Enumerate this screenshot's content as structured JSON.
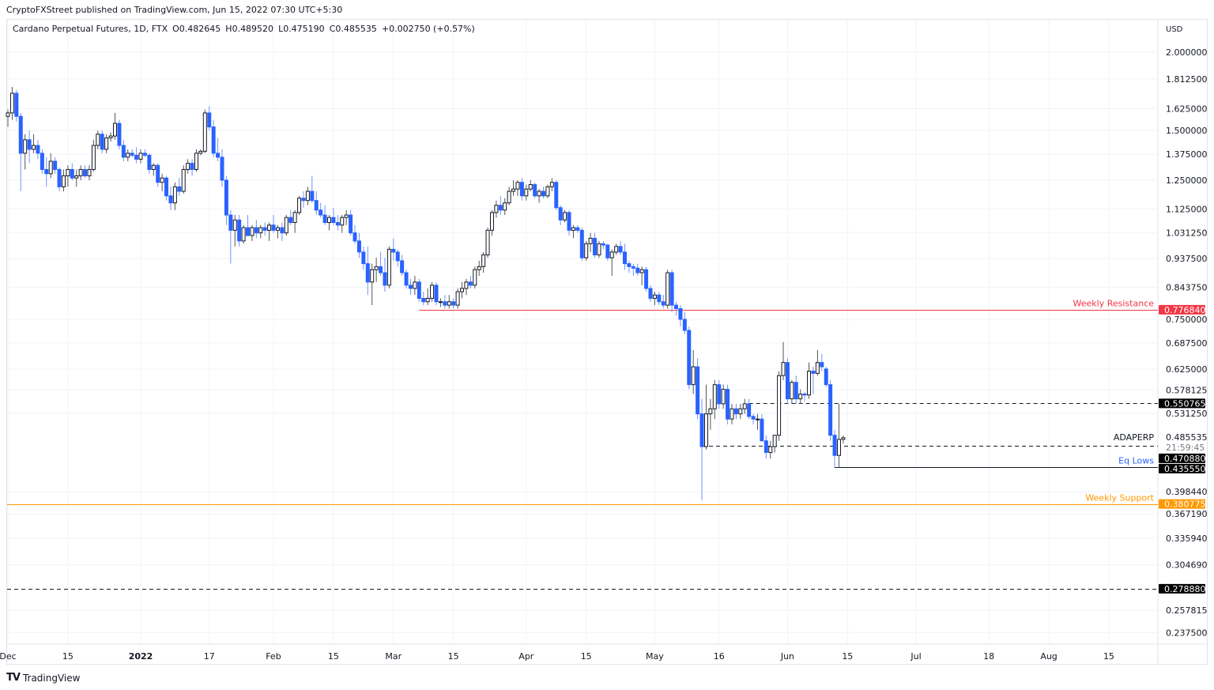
{
  "publisher_line": "CryptoFXStreet published on TradingView.com, Jun 15, 2022 07:30 UTC+5:30",
  "legend": {
    "symbol": "Cardano Perpetual Futures, 1D, FTX",
    "open": "O0.482645",
    "high": "H0.489520",
    "low": "L0.475190",
    "close": "C0.485535",
    "change": "+0.002750 (+0.57%)"
  },
  "footer": {
    "brand": "TradingView",
    "logo_text": "TV"
  },
  "colors": {
    "up_border": "#131722",
    "up_fill": "#ffffff",
    "down": "#2962ff",
    "down_wick": "#6f93ff",
    "resistance": "#f23645",
    "support": "#ff9800",
    "grid": "#f0f3fa",
    "label_bg": "#000000"
  },
  "chart_data": {
    "type": "candlestick",
    "title": "Cardano Perpetual Futures, 1D, FTX",
    "currency": "USD",
    "scale": "log",
    "ylim": [
      0.225,
      2.1
    ],
    "grid": true,
    "candles_ohlc_from": "Dec 2021",
    "candles": [
      [
        1.58,
        1.62,
        1.52,
        1.6
      ],
      [
        1.6,
        1.76,
        1.56,
        1.72
      ],
      [
        1.72,
        1.74,
        1.55,
        1.58
      ],
      [
        1.58,
        1.6,
        1.2,
        1.38
      ],
      [
        1.38,
        1.48,
        1.3,
        1.45
      ],
      [
        1.45,
        1.5,
        1.33,
        1.4
      ],
      [
        1.4,
        1.48,
        1.38,
        1.42
      ],
      [
        1.42,
        1.45,
        1.35,
        1.38
      ],
      [
        1.38,
        1.4,
        1.28,
        1.3
      ],
      [
        1.3,
        1.36,
        1.22,
        1.28
      ],
      [
        1.28,
        1.38,
        1.26,
        1.34
      ],
      [
        1.34,
        1.36,
        1.28,
        1.3
      ],
      [
        1.3,
        1.31,
        1.2,
        1.22
      ],
      [
        1.22,
        1.3,
        1.2,
        1.27
      ],
      [
        1.27,
        1.32,
        1.22,
        1.3
      ],
      [
        1.3,
        1.33,
        1.25,
        1.26
      ],
      [
        1.26,
        1.3,
        1.22,
        1.27
      ],
      [
        1.27,
        1.32,
        1.25,
        1.3
      ],
      [
        1.3,
        1.32,
        1.26,
        1.27
      ],
      [
        1.27,
        1.32,
        1.25,
        1.3
      ],
      [
        1.3,
        1.45,
        1.29,
        1.42
      ],
      [
        1.42,
        1.5,
        1.4,
        1.48
      ],
      [
        1.48,
        1.5,
        1.38,
        1.4
      ],
      [
        1.4,
        1.48,
        1.38,
        1.46
      ],
      [
        1.46,
        1.49,
        1.44,
        1.47
      ],
      [
        1.47,
        1.6,
        1.45,
        1.54
      ],
      [
        1.54,
        1.56,
        1.4,
        1.42
      ],
      [
        1.42,
        1.45,
        1.34,
        1.36
      ],
      [
        1.36,
        1.4,
        1.34,
        1.38
      ],
      [
        1.38,
        1.4,
        1.36,
        1.37
      ],
      [
        1.37,
        1.41,
        1.33,
        1.35
      ],
      [
        1.35,
        1.4,
        1.33,
        1.38
      ],
      [
        1.38,
        1.4,
        1.36,
        1.37
      ],
      [
        1.37,
        1.38,
        1.28,
        1.3
      ],
      [
        1.3,
        1.33,
        1.27,
        1.32
      ],
      [
        1.32,
        1.33,
        1.22,
        1.24
      ],
      [
        1.24,
        1.28,
        1.2,
        1.26
      ],
      [
        1.26,
        1.27,
        1.16,
        1.18
      ],
      [
        1.18,
        1.22,
        1.12,
        1.15
      ],
      [
        1.15,
        1.24,
        1.12,
        1.22
      ],
      [
        1.22,
        1.26,
        1.18,
        1.2
      ],
      [
        1.2,
        1.32,
        1.19,
        1.3
      ],
      [
        1.3,
        1.35,
        1.28,
        1.33
      ],
      [
        1.33,
        1.35,
        1.27,
        1.3
      ],
      [
        1.3,
        1.4,
        1.29,
        1.38
      ],
      [
        1.38,
        1.4,
        1.37,
        1.39
      ],
      [
        1.39,
        1.62,
        1.38,
        1.6
      ],
      [
        1.6,
        1.64,
        1.5,
        1.52
      ],
      [
        1.52,
        1.56,
        1.36,
        1.38
      ],
      [
        1.38,
        1.46,
        1.34,
        1.36
      ],
      [
        1.36,
        1.4,
        1.22,
        1.25
      ],
      [
        1.25,
        1.27,
        1.06,
        1.1
      ],
      [
        1.1,
        1.12,
        0.92,
        1.04
      ],
      [
        1.04,
        1.1,
        0.98,
        1.08
      ],
      [
        1.08,
        1.1,
        0.98,
        1.0
      ],
      [
        1.0,
        1.06,
        0.99,
        1.05
      ],
      [
        1.05,
        1.1,
        1.02,
        1.02
      ],
      [
        1.02,
        1.06,
        1.0,
        1.05
      ],
      [
        1.05,
        1.08,
        1.01,
        1.03
      ],
      [
        1.03,
        1.06,
        1.01,
        1.05
      ],
      [
        1.05,
        1.07,
        1.02,
        1.04
      ],
      [
        1.04,
        1.07,
        1.0,
        1.06
      ],
      [
        1.06,
        1.1,
        1.03,
        1.04
      ],
      [
        1.04,
        1.06,
        1.01,
        1.05
      ],
      [
        1.05,
        1.07,
        1.0,
        1.03
      ],
      [
        1.03,
        1.1,
        1.02,
        1.09
      ],
      [
        1.09,
        1.12,
        1.06,
        1.07
      ],
      [
        1.07,
        1.12,
        1.03,
        1.11
      ],
      [
        1.11,
        1.18,
        1.1,
        1.17
      ],
      [
        1.17,
        1.2,
        1.13,
        1.16
      ],
      [
        1.16,
        1.22,
        1.14,
        1.2
      ],
      [
        1.2,
        1.27,
        1.15,
        1.16
      ],
      [
        1.16,
        1.2,
        1.1,
        1.12
      ],
      [
        1.12,
        1.15,
        1.09,
        1.1
      ],
      [
        1.1,
        1.14,
        1.06,
        1.07
      ],
      [
        1.07,
        1.1,
        1.04,
        1.09
      ],
      [
        1.09,
        1.13,
        1.06,
        1.07
      ],
      [
        1.07,
        1.1,
        1.04,
        1.06
      ],
      [
        1.06,
        1.1,
        1.03,
        1.09
      ],
      [
        1.09,
        1.12,
        1.06,
        1.1
      ],
      [
        1.1,
        1.12,
        1.02,
        1.03
      ],
      [
        1.03,
        1.06,
        0.99,
        1.0
      ],
      [
        1.0,
        1.03,
        0.94,
        0.96
      ],
      [
        0.96,
        0.98,
        0.9,
        0.92
      ],
      [
        0.92,
        0.98,
        0.82,
        0.86
      ],
      [
        0.86,
        0.92,
        0.79,
        0.9
      ],
      [
        0.9,
        0.94,
        0.86,
        0.91
      ],
      [
        0.91,
        0.96,
        0.88,
        0.89
      ],
      [
        0.89,
        0.94,
        0.83,
        0.85
      ],
      [
        0.85,
        0.98,
        0.84,
        0.97
      ],
      [
        0.97,
        1.01,
        0.93,
        0.96
      ],
      [
        0.96,
        0.97,
        0.91,
        0.93
      ],
      [
        0.93,
        0.95,
        0.88,
        0.89
      ],
      [
        0.89,
        0.9,
        0.84,
        0.85
      ],
      [
        0.85,
        0.87,
        0.82,
        0.84
      ],
      [
        0.84,
        0.88,
        0.82,
        0.86
      ],
      [
        0.86,
        0.87,
        0.8,
        0.81
      ],
      [
        0.81,
        0.83,
        0.79,
        0.8
      ],
      [
        0.8,
        0.84,
        0.79,
        0.81
      ],
      [
        0.81,
        0.86,
        0.8,
        0.85
      ],
      [
        0.85,
        0.86,
        0.79,
        0.8
      ],
      [
        0.8,
        0.81,
        0.785,
        0.8
      ],
      [
        0.8,
        0.82,
        0.78,
        0.79
      ],
      [
        0.79,
        0.82,
        0.78,
        0.8
      ],
      [
        0.8,
        0.81,
        0.78,
        0.79
      ],
      [
        0.79,
        0.84,
        0.78,
        0.83
      ],
      [
        0.83,
        0.86,
        0.81,
        0.84
      ],
      [
        0.84,
        0.87,
        0.82,
        0.86
      ],
      [
        0.86,
        0.88,
        0.84,
        0.85
      ],
      [
        0.85,
        0.91,
        0.84,
        0.9
      ],
      [
        0.9,
        0.93,
        0.88,
        0.91
      ],
      [
        0.91,
        0.96,
        0.89,
        0.95
      ],
      [
        0.95,
        1.05,
        0.94,
        1.04
      ],
      [
        1.04,
        1.12,
        1.02,
        1.11
      ],
      [
        1.11,
        1.16,
        1.09,
        1.14
      ],
      [
        1.14,
        1.18,
        1.1,
        1.12
      ],
      [
        1.12,
        1.17,
        1.1,
        1.15
      ],
      [
        1.15,
        1.22,
        1.14,
        1.2
      ],
      [
        1.2,
        1.25,
        1.18,
        1.21
      ],
      [
        1.21,
        1.25,
        1.18,
        1.24
      ],
      [
        1.24,
        1.26,
        1.16,
        1.18
      ],
      [
        1.18,
        1.23,
        1.16,
        1.21
      ],
      [
        1.21,
        1.25,
        1.2,
        1.23
      ],
      [
        1.23,
        1.24,
        1.17,
        1.18
      ],
      [
        1.18,
        1.21,
        1.15,
        1.2
      ],
      [
        1.2,
        1.22,
        1.17,
        1.18
      ],
      [
        1.18,
        1.23,
        1.17,
        1.22
      ],
      [
        1.22,
        1.26,
        1.2,
        1.24
      ],
      [
        1.24,
        1.25,
        1.12,
        1.13
      ],
      [
        1.13,
        1.14,
        1.06,
        1.08
      ],
      [
        1.08,
        1.12,
        1.07,
        1.11
      ],
      [
        1.11,
        1.12,
        1.02,
        1.04
      ],
      [
        1.04,
        1.06,
        1.01,
        1.05
      ],
      [
        1.05,
        1.06,
        1.03,
        1.04
      ],
      [
        1.04,
        1.05,
        0.93,
        0.94
      ],
      [
        0.94,
        1.0,
        0.93,
        0.99
      ],
      [
        0.99,
        1.03,
        0.96,
        1.01
      ],
      [
        1.01,
        1.03,
        0.94,
        0.95
      ],
      [
        0.95,
        1.0,
        0.94,
        0.99
      ],
      [
        0.99,
        1.0,
        0.97,
        0.985
      ],
      [
        0.985,
        0.99,
        0.93,
        0.94
      ],
      [
        0.94,
        0.97,
        0.88,
        0.96
      ],
      [
        0.96,
        0.99,
        0.95,
        0.98
      ],
      [
        0.98,
        1.0,
        0.95,
        0.96
      ],
      [
        0.96,
        0.99,
        0.9,
        0.92
      ],
      [
        0.92,
        0.93,
        0.89,
        0.91
      ],
      [
        0.91,
        0.92,
        0.88,
        0.905
      ],
      [
        0.905,
        0.92,
        0.88,
        0.89
      ],
      [
        0.89,
        0.91,
        0.85,
        0.9
      ],
      [
        0.9,
        0.91,
        0.83,
        0.84
      ],
      [
        0.84,
        0.85,
        0.8,
        0.81
      ],
      [
        0.81,
        0.83,
        0.79,
        0.82
      ],
      [
        0.82,
        0.83,
        0.79,
        0.8
      ],
      [
        0.8,
        0.82,
        0.78,
        0.79
      ],
      [
        0.79,
        0.9,
        0.78,
        0.89
      ],
      [
        0.89,
        0.9,
        0.77,
        0.79
      ],
      [
        0.79,
        0.8,
        0.76,
        0.78
      ],
      [
        0.78,
        0.79,
        0.73,
        0.75
      ],
      [
        0.75,
        0.77,
        0.71,
        0.72
      ],
      [
        0.72,
        0.73,
        0.58,
        0.59
      ],
      [
        0.59,
        0.67,
        0.57,
        0.63
      ],
      [
        0.63,
        0.65,
        0.52,
        0.53
      ],
      [
        0.53,
        0.56,
        0.386,
        0.47
      ],
      [
        0.47,
        0.59,
        0.465,
        0.53
      ],
      [
        0.53,
        0.56,
        0.5,
        0.54
      ],
      [
        0.54,
        0.6,
        0.52,
        0.59
      ],
      [
        0.59,
        0.6,
        0.54,
        0.55
      ],
      [
        0.55,
        0.59,
        0.54,
        0.58
      ],
      [
        0.58,
        0.59,
        0.51,
        0.52
      ],
      [
        0.52,
        0.55,
        0.51,
        0.54
      ],
      [
        0.54,
        0.55,
        0.52,
        0.53
      ],
      [
        0.53,
        0.55,
        0.52,
        0.54
      ],
      [
        0.54,
        0.56,
        0.53,
        0.55
      ],
      [
        0.55,
        0.56,
        0.52,
        0.525
      ],
      [
        0.525,
        0.53,
        0.51,
        0.52
      ],
      [
        0.52,
        0.53,
        0.5,
        0.52
      ],
      [
        0.52,
        0.53,
        0.48,
        0.48
      ],
      [
        0.48,
        0.49,
        0.45,
        0.46
      ],
      [
        0.46,
        0.48,
        0.45,
        0.47
      ],
      [
        0.47,
        0.49,
        0.46,
        0.49
      ],
      [
        0.49,
        0.62,
        0.48,
        0.61
      ],
      [
        0.61,
        0.69,
        0.6,
        0.64
      ],
      [
        0.64,
        0.65,
        0.55,
        0.56
      ],
      [
        0.56,
        0.6,
        0.55,
        0.595
      ],
      [
        0.595,
        0.61,
        0.55,
        0.56
      ],
      [
        0.56,
        0.58,
        0.55,
        0.57
      ],
      [
        0.57,
        0.575,
        0.555,
        0.568
      ],
      [
        0.568,
        0.64,
        0.56,
        0.62
      ],
      [
        0.62,
        0.63,
        0.57,
        0.615
      ],
      [
        0.615,
        0.67,
        0.61,
        0.64
      ],
      [
        0.64,
        0.66,
        0.62,
        0.63
      ],
      [
        0.625,
        0.63,
        0.585,
        0.59
      ],
      [
        0.59,
        0.6,
        0.48,
        0.49
      ],
      [
        0.49,
        0.5,
        0.4355,
        0.455
      ],
      [
        0.455,
        0.55,
        0.4355,
        0.4826
      ],
      [
        0.482645,
        0.48952,
        0.47519,
        0.485535
      ]
    ],
    "price_ticks": [
      "2.000000",
      "1.812500",
      "1.625000",
      "1.500000",
      "1.375000",
      "1.250000",
      "1.125000",
      "1.031250",
      "0.937500",
      "0.843750",
      "0.750000",
      "0.687500",
      "0.625000",
      "0.578125",
      "0.531250",
      "0.398440",
      "0.367190",
      "0.335940",
      "0.304690",
      "0.257815",
      "0.237500"
    ],
    "time_ticks": [
      {
        "label": "Dec",
        "date": "2021-12-01",
        "bold": false
      },
      {
        "label": "15",
        "date": "2021-12-15",
        "bold": false
      },
      {
        "label": "2022",
        "date": "2022-01-01",
        "bold": true
      },
      {
        "label": "17",
        "date": "2022-01-17",
        "bold": false
      },
      {
        "label": "Feb",
        "date": "2022-02-01",
        "bold": false
      },
      {
        "label": "15",
        "date": "2022-02-15",
        "bold": false
      },
      {
        "label": "Mar",
        "date": "2022-03-01",
        "bold": false
      },
      {
        "label": "15",
        "date": "2022-03-15",
        "bold": false
      },
      {
        "label": "Apr",
        "date": "2022-04-01",
        "bold": false
      },
      {
        "label": "15",
        "date": "2022-04-15",
        "bold": false
      },
      {
        "label": "May",
        "date": "2022-05-01",
        "bold": false
      },
      {
        "label": "16",
        "date": "2022-05-16",
        "bold": false
      },
      {
        "label": "Jun",
        "date": "2022-06-01",
        "bold": false
      },
      {
        "label": "15",
        "date": "2022-06-15",
        "bold": false
      },
      {
        "label": "Jul",
        "date": "2022-07-01",
        "bold": false
      },
      {
        "label": "18",
        "date": "2022-07-18",
        "bold": false
      },
      {
        "label": "Aug",
        "date": "2022-08-01",
        "bold": false
      },
      {
        "label": "15",
        "date": "2022-08-15",
        "bold": false
      }
    ],
    "axis_currency_label": "USD",
    "current_price": {
      "symbol": "ADAPERP",
      "price": "0.485535",
      "countdown": "21:59:45"
    },
    "levels": [
      {
        "name": "weekly-resistance",
        "price": 0.77684,
        "label": "0.776840",
        "text": "Weekly Resistance",
        "style": "solid",
        "color": "#f23645",
        "text_color": "#f23645",
        "from": "2022-03-07"
      },
      {
        "name": "upper-dashed-level",
        "price": 0.550765,
        "label": "0.550765",
        "text": "",
        "style": "dashed",
        "color": "#131722",
        "text_color": "",
        "from": "2022-05-23"
      },
      {
        "name": "eq-lows-dashed",
        "price": 0.47088,
        "label": "0.470880",
        "text": "",
        "style": "dashed",
        "color": "#131722",
        "text_color": "",
        "from": "2022-05-12"
      },
      {
        "name": "eq-lows",
        "price": 0.43555,
        "label": "0.435550",
        "text": "Eq Lows",
        "style": "solid",
        "color": "#131722",
        "text_color": "#2962ff",
        "from": "2022-06-12"
      },
      {
        "name": "weekly-support",
        "price": 0.380775,
        "label": "0.380775",
        "text": "Weekly Support",
        "style": "solid",
        "color": "#ff9800",
        "text_color": "#ff9800",
        "from": "2021-11-30"
      },
      {
        "name": "lower-dashed-level",
        "price": 0.27888,
        "label": "0.278880",
        "text": "",
        "style": "dashed",
        "color": "#131722",
        "text_color": "",
        "from": "2021-11-30"
      }
    ]
  }
}
